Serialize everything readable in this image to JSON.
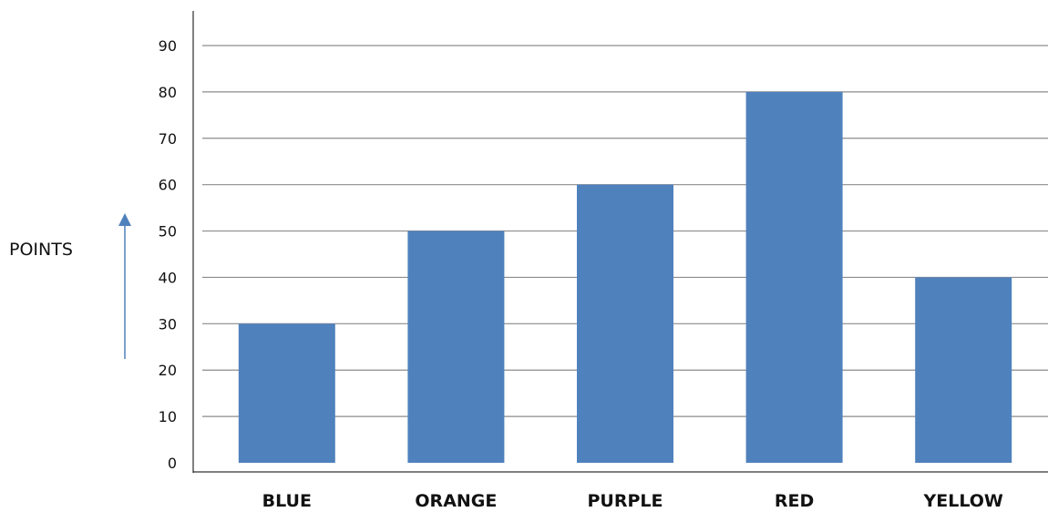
{
  "chart_data": {
    "type": "bar",
    "categories": [
      "BLUE",
      "ORANGE",
      "PURPLE",
      "RED",
      "YELLOW"
    ],
    "values": [
      30,
      50,
      60,
      80,
      40
    ],
    "title": "",
    "xlabel": "",
    "ylabel": "POINTS",
    "ylim": [
      0,
      90
    ],
    "yticks": [
      0,
      10,
      20,
      30,
      40,
      50,
      60,
      70,
      80,
      90
    ],
    "grid": true,
    "legend": "none",
    "bar_color": "#4f81bd",
    "arrow_color": "#4f81bd"
  }
}
